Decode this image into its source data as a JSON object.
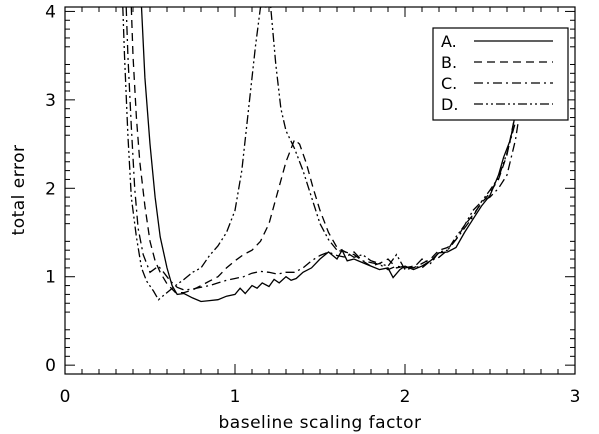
{
  "chart_data": {
    "type": "line",
    "title": "",
    "xlabel": "baseline scaling factor",
    "ylabel": "total error",
    "xlim": [
      0,
      3
    ],
    "ylim": [
      -0.1,
      4.05
    ],
    "x_ticks": [
      0,
      1,
      2,
      3
    ],
    "x_tick_labels": [
      "0",
      "1",
      "2",
      "3"
    ],
    "y_ticks": [
      0,
      1,
      2,
      3,
      4
    ],
    "y_tick_labels": [
      "0",
      "1",
      "2",
      "3",
      "4"
    ],
    "grid": false,
    "legend_position": "top-right",
    "line_color": "#000000",
    "series": [
      {
        "name": "A.",
        "dash": "solid",
        "points": [
          [
            0.45,
            4.05
          ],
          [
            0.47,
            3.25
          ],
          [
            0.5,
            2.5
          ],
          [
            0.53,
            1.9
          ],
          [
            0.56,
            1.45
          ],
          [
            0.6,
            1.1
          ],
          [
            0.63,
            0.9
          ],
          [
            0.66,
            0.8
          ],
          [
            0.7,
            0.81
          ],
          [
            0.75,
            0.76
          ],
          [
            0.8,
            0.72
          ],
          [
            0.85,
            0.73
          ],
          [
            0.9,
            0.74
          ],
          [
            0.95,
            0.78
          ],
          [
            1.0,
            0.8
          ],
          [
            1.03,
            0.87
          ],
          [
            1.06,
            0.81
          ],
          [
            1.1,
            0.9
          ],
          [
            1.13,
            0.87
          ],
          [
            1.16,
            0.93
          ],
          [
            1.2,
            0.89
          ],
          [
            1.23,
            0.97
          ],
          [
            1.26,
            0.93
          ],
          [
            1.3,
            1.0
          ],
          [
            1.33,
            0.96
          ],
          [
            1.36,
            0.98
          ],
          [
            1.4,
            1.05
          ],
          [
            1.45,
            1.1
          ],
          [
            1.5,
            1.2
          ],
          [
            1.55,
            1.28
          ],
          [
            1.6,
            1.2
          ],
          [
            1.63,
            1.3
          ],
          [
            1.66,
            1.18
          ],
          [
            1.7,
            1.2
          ],
          [
            1.75,
            1.16
          ],
          [
            1.8,
            1.12
          ],
          [
            1.85,
            1.08
          ],
          [
            1.9,
            1.1
          ],
          [
            1.93,
            0.99
          ],
          [
            1.97,
            1.08
          ],
          [
            2.0,
            1.12
          ],
          [
            2.05,
            1.08
          ],
          [
            2.1,
            1.12
          ],
          [
            2.15,
            1.18
          ],
          [
            2.2,
            1.27
          ],
          [
            2.25,
            1.28
          ],
          [
            2.3,
            1.33
          ],
          [
            2.35,
            1.5
          ],
          [
            2.4,
            1.65
          ],
          [
            2.45,
            1.8
          ],
          [
            2.5,
            1.92
          ],
          [
            2.55,
            2.15
          ],
          [
            2.58,
            2.35
          ],
          [
            2.62,
            2.55
          ],
          [
            2.65,
            2.85
          ]
        ]
      },
      {
        "name": "B.",
        "dash": "dashed",
        "points": [
          [
            0.39,
            4.05
          ],
          [
            0.4,
            3.5
          ],
          [
            0.42,
            2.8
          ],
          [
            0.44,
            2.3
          ],
          [
            0.47,
            1.8
          ],
          [
            0.5,
            1.4
          ],
          [
            0.53,
            1.18
          ],
          [
            0.56,
            1.05
          ],
          [
            0.6,
            0.92
          ],
          [
            0.65,
            0.82
          ],
          [
            0.7,
            0.82
          ],
          [
            0.75,
            0.85
          ],
          [
            0.8,
            0.9
          ],
          [
            0.85,
            0.95
          ],
          [
            0.9,
            1.0
          ],
          [
            0.95,
            1.1
          ],
          [
            1.0,
            1.18
          ],
          [
            1.05,
            1.25
          ],
          [
            1.1,
            1.3
          ],
          [
            1.15,
            1.4
          ],
          [
            1.2,
            1.6
          ],
          [
            1.25,
            1.95
          ],
          [
            1.3,
            2.3
          ],
          [
            1.35,
            2.55
          ],
          [
            1.38,
            2.5
          ],
          [
            1.42,
            2.28
          ],
          [
            1.46,
            2.0
          ],
          [
            1.5,
            1.75
          ],
          [
            1.55,
            1.5
          ],
          [
            1.6,
            1.33
          ],
          [
            1.65,
            1.28
          ],
          [
            1.7,
            1.25
          ],
          [
            1.75,
            1.18
          ],
          [
            1.8,
            1.12
          ],
          [
            1.85,
            1.15
          ],
          [
            1.9,
            1.2
          ],
          [
            1.95,
            1.1
          ],
          [
            2.0,
            1.12
          ],
          [
            2.05,
            1.1
          ],
          [
            2.1,
            1.15
          ],
          [
            2.15,
            1.2
          ],
          [
            2.2,
            1.3
          ],
          [
            2.25,
            1.33
          ],
          [
            2.3,
            1.42
          ],
          [
            2.35,
            1.58
          ],
          [
            2.4,
            1.7
          ],
          [
            2.45,
            1.83
          ],
          [
            2.5,
            1.95
          ],
          [
            2.55,
            2.1
          ],
          [
            2.6,
            2.38
          ],
          [
            2.65,
            2.85
          ]
        ]
      },
      {
        "name": "C.",
        "dash": "dash-dot",
        "points": [
          [
            0.36,
            4.05
          ],
          [
            0.37,
            3.5
          ],
          [
            0.39,
            2.7
          ],
          [
            0.41,
            2.0
          ],
          [
            0.43,
            1.55
          ],
          [
            0.46,
            1.25
          ],
          [
            0.5,
            1.05
          ],
          [
            0.55,
            1.12
          ],
          [
            0.58,
            1.05
          ],
          [
            0.62,
            0.95
          ],
          [
            0.66,
            0.88
          ],
          [
            0.7,
            0.85
          ],
          [
            0.75,
            0.86
          ],
          [
            0.8,
            0.88
          ],
          [
            0.85,
            0.9
          ],
          [
            0.9,
            0.93
          ],
          [
            0.95,
            0.96
          ],
          [
            1.0,
            0.98
          ],
          [
            1.05,
            1.0
          ],
          [
            1.1,
            1.04
          ],
          [
            1.15,
            1.06
          ],
          [
            1.2,
            1.05
          ],
          [
            1.25,
            1.03
          ],
          [
            1.3,
            1.05
          ],
          [
            1.35,
            1.05
          ],
          [
            1.4,
            1.1
          ],
          [
            1.45,
            1.18
          ],
          [
            1.5,
            1.24
          ],
          [
            1.55,
            1.28
          ],
          [
            1.6,
            1.24
          ],
          [
            1.65,
            1.22
          ],
          [
            1.7,
            1.28
          ],
          [
            1.75,
            1.18
          ],
          [
            1.8,
            1.16
          ],
          [
            1.85,
            1.14
          ],
          [
            1.9,
            1.08
          ],
          [
            1.95,
            1.12
          ],
          [
            2.0,
            1.1
          ],
          [
            2.05,
            1.12
          ],
          [
            2.1,
            1.1
          ],
          [
            2.15,
            1.18
          ],
          [
            2.2,
            1.22
          ],
          [
            2.25,
            1.3
          ],
          [
            2.3,
            1.42
          ],
          [
            2.35,
            1.55
          ],
          [
            2.4,
            1.68
          ],
          [
            2.45,
            1.85
          ],
          [
            2.5,
            1.9
          ],
          [
            2.55,
            2.0
          ],
          [
            2.6,
            2.15
          ],
          [
            2.65,
            2.55
          ],
          [
            2.67,
            2.8
          ]
        ]
      },
      {
        "name": "D.",
        "dash": "dash-dot-dot",
        "points": [
          [
            0.34,
            4.05
          ],
          [
            0.35,
            3.5
          ],
          [
            0.37,
            2.6
          ],
          [
            0.39,
            1.9
          ],
          [
            0.42,
            1.45
          ],
          [
            0.45,
            1.1
          ],
          [
            0.48,
            0.95
          ],
          [
            0.52,
            0.84
          ],
          [
            0.55,
            0.74
          ],
          [
            0.6,
            0.82
          ],
          [
            0.65,
            0.9
          ],
          [
            0.7,
            0.97
          ],
          [
            0.75,
            1.05
          ],
          [
            0.8,
            1.1
          ],
          [
            0.85,
            1.24
          ],
          [
            0.9,
            1.35
          ],
          [
            0.95,
            1.5
          ],
          [
            1.0,
            1.75
          ],
          [
            1.04,
            2.2
          ],
          [
            1.08,
            2.9
          ],
          [
            1.12,
            3.6
          ],
          [
            1.15,
            4.05
          ],
          [
            1.21,
            4.05
          ],
          [
            1.24,
            3.4
          ],
          [
            1.27,
            2.9
          ],
          [
            1.3,
            2.65
          ],
          [
            1.35,
            2.45
          ],
          [
            1.4,
            2.2
          ],
          [
            1.45,
            1.9
          ],
          [
            1.5,
            1.6
          ],
          [
            1.55,
            1.42
          ],
          [
            1.6,
            1.3
          ],
          [
            1.65,
            1.28
          ],
          [
            1.7,
            1.22
          ],
          [
            1.75,
            1.25
          ],
          [
            1.8,
            1.18
          ],
          [
            1.85,
            1.15
          ],
          [
            1.9,
            1.12
          ],
          [
            1.95,
            1.25
          ],
          [
            2.0,
            1.08
          ],
          [
            2.05,
            1.1
          ],
          [
            2.1,
            1.2
          ],
          [
            2.15,
            1.15
          ],
          [
            2.2,
            1.28
          ],
          [
            2.25,
            1.3
          ],
          [
            2.3,
            1.45
          ],
          [
            2.35,
            1.58
          ],
          [
            2.4,
            1.75
          ],
          [
            2.45,
            1.85
          ],
          [
            2.5,
            1.98
          ],
          [
            2.55,
            2.12
          ],
          [
            2.6,
            2.4
          ],
          [
            2.65,
            2.75
          ]
        ]
      }
    ]
  }
}
